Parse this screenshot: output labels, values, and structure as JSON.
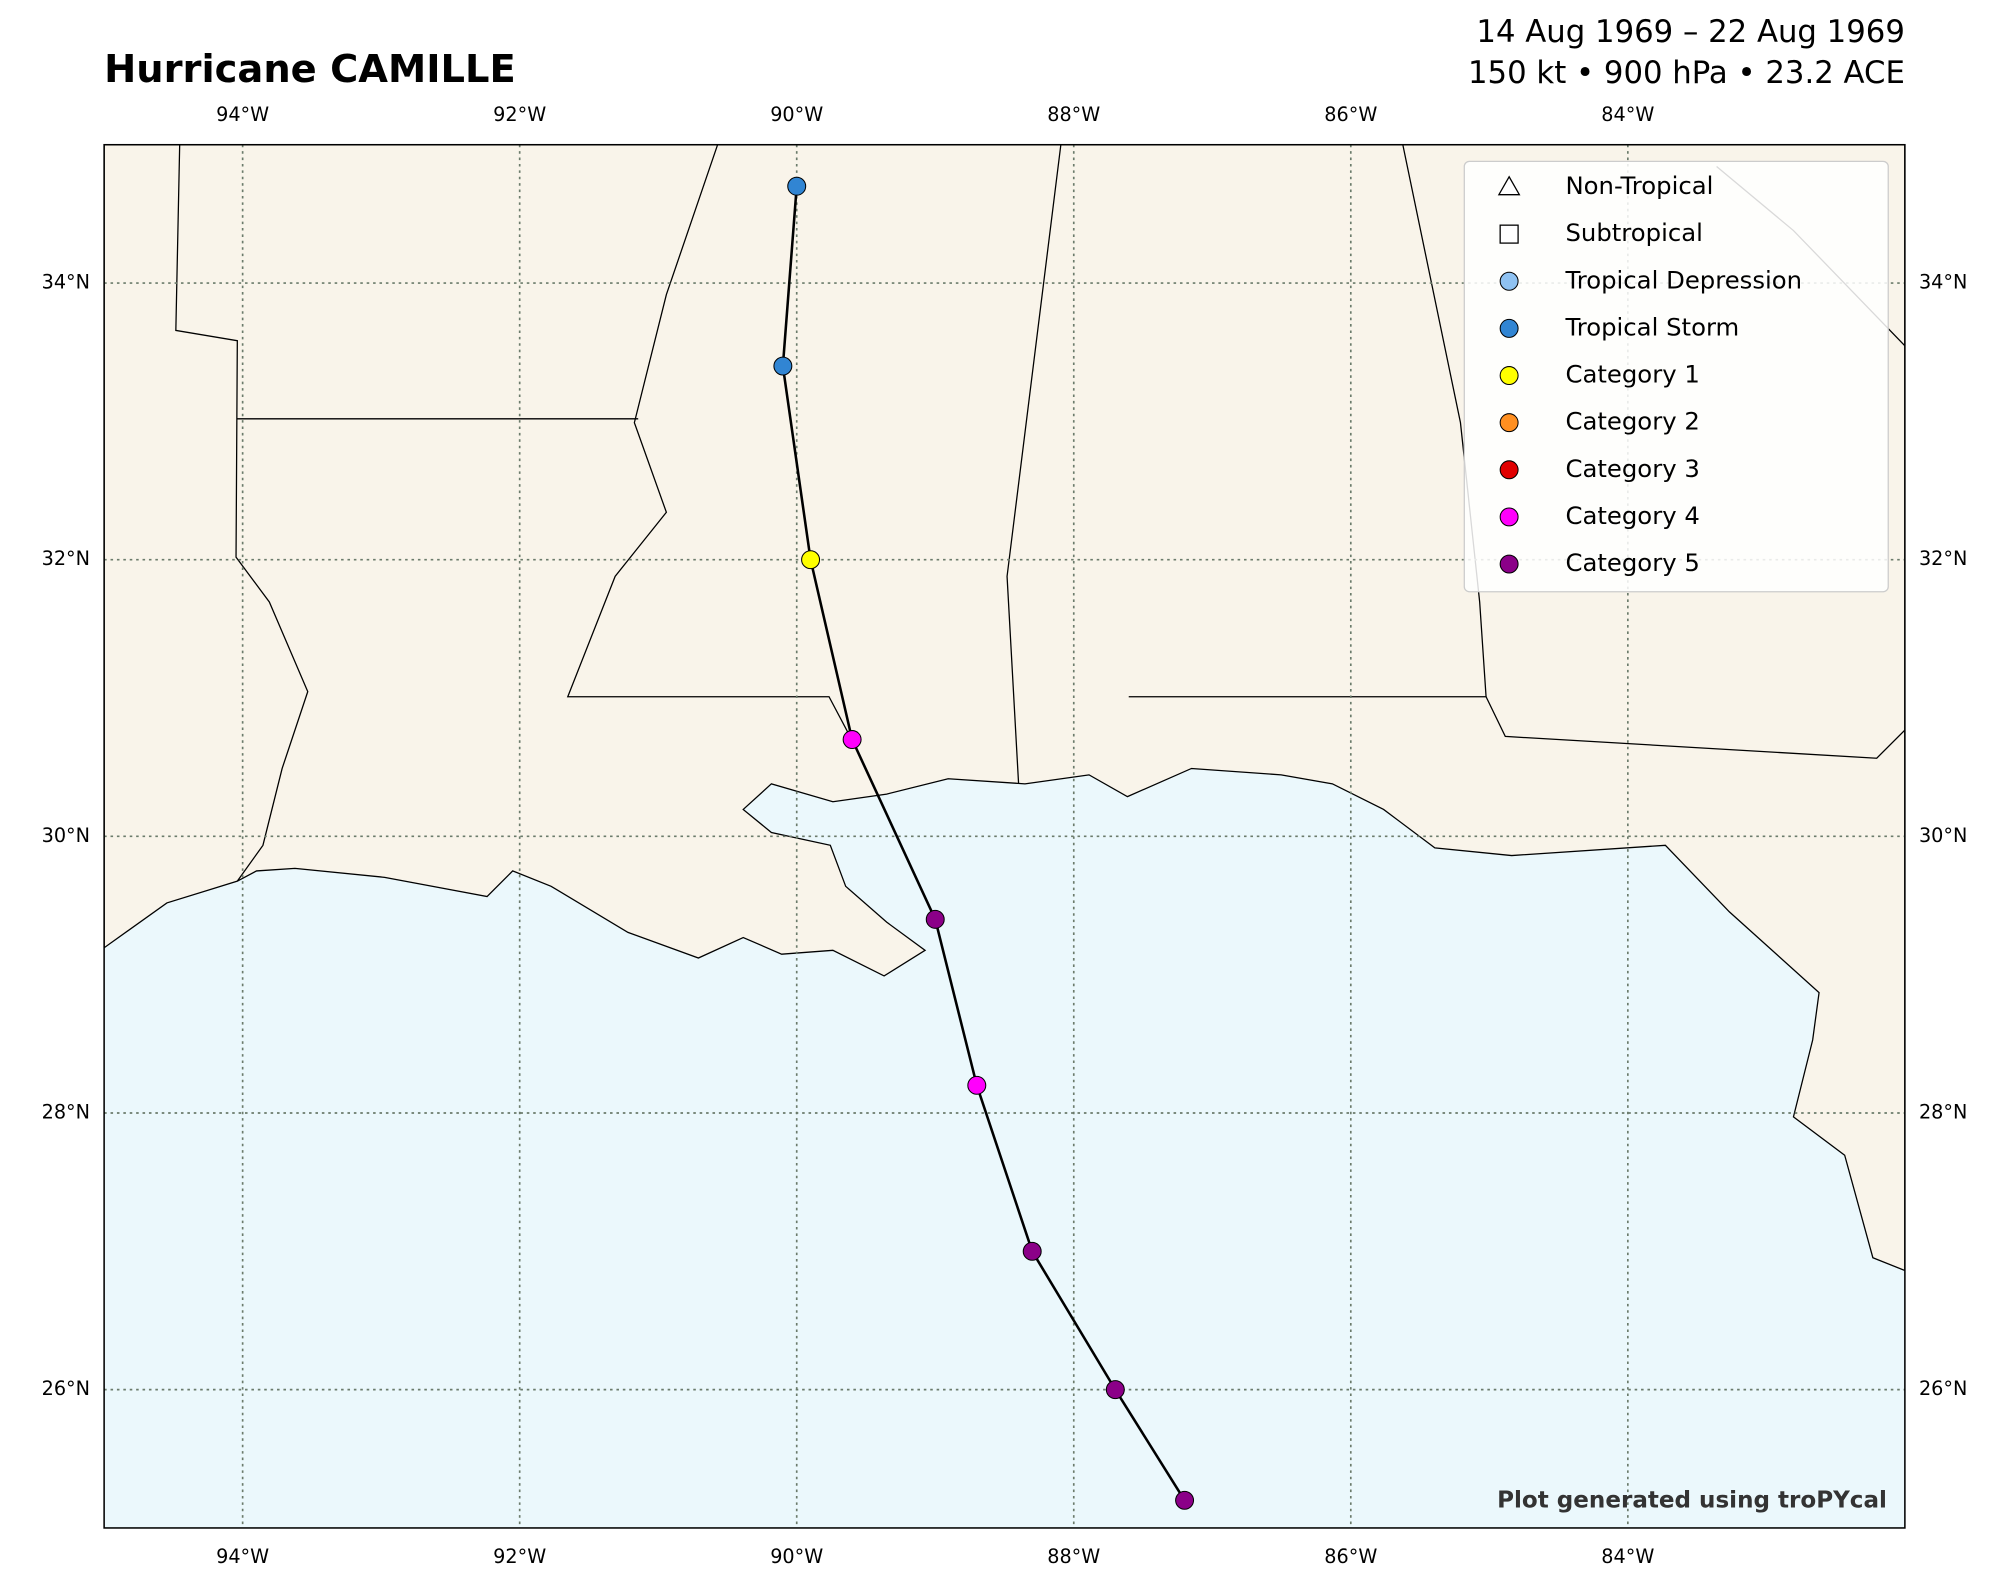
{
  "chart_data": {
    "type": "track-map",
    "title": "Hurricane CAMILLE",
    "subtitle_lines": [
      "14 Aug 1969 – 22 Aug 1969",
      "150 kt • 900 hPa • 23.2 ACE"
    ],
    "credit": "Plot generated using troPYcal",
    "xlim": [
      -95,
      -82
    ],
    "ylim": [
      25,
      35
    ],
    "xticks": [
      {
        "value": -94,
        "label": "94°W"
      },
      {
        "value": -92,
        "label": "92°W"
      },
      {
        "value": -90,
        "label": "90°W"
      },
      {
        "value": -88,
        "label": "88°W"
      },
      {
        "value": -86,
        "label": "86°W"
      },
      {
        "value": -84,
        "label": "84°W"
      }
    ],
    "yticks": [
      {
        "value": 26,
        "label": "26°N"
      },
      {
        "value": 28,
        "label": "28°N"
      },
      {
        "value": 30,
        "label": "30°N"
      },
      {
        "value": 32,
        "label": "32°N"
      },
      {
        "value": 34,
        "label": "34°N"
      }
    ],
    "grid": true,
    "legend_position": "upper right",
    "legend": [
      {
        "name": "Non-Tropical",
        "marker": "triangle",
        "color": "#ffffff"
      },
      {
        "name": "Subtropical",
        "marker": "square",
        "color": "#ffffff"
      },
      {
        "name": "Tropical Depression",
        "marker": "circle",
        "color": "#8fc2f2"
      },
      {
        "name": "Tropical Storm",
        "marker": "circle",
        "color": "#3185d3"
      },
      {
        "name": "Category 1",
        "marker": "circle",
        "color": "#ffff00"
      },
      {
        "name": "Category 2",
        "marker": "circle",
        "color": "#ff8f20"
      },
      {
        "name": "Category 3",
        "marker": "circle",
        "color": "#e00000"
      },
      {
        "name": "Category 4",
        "marker": "circle",
        "color": "#ff00fc"
      },
      {
        "name": "Category 5",
        "marker": "circle",
        "color": "#8b0088"
      }
    ],
    "track": {
      "color": "#000000",
      "lon": [
        -90.0,
        -90.1,
        -89.9,
        -89.6,
        -89.0,
        -88.7,
        -88.3,
        -87.7,
        -87.2
      ],
      "lat": [
        34.7,
        33.4,
        32.0,
        30.7,
        29.4,
        28.2,
        27.0,
        26.0,
        25.2
      ],
      "category": [
        "Tropical Storm",
        "Tropical Storm",
        "Category 1",
        "Category 4",
        "Category 5",
        "Category 4",
        "Category 5",
        "Category 5",
        "Category 5"
      ]
    }
  }
}
